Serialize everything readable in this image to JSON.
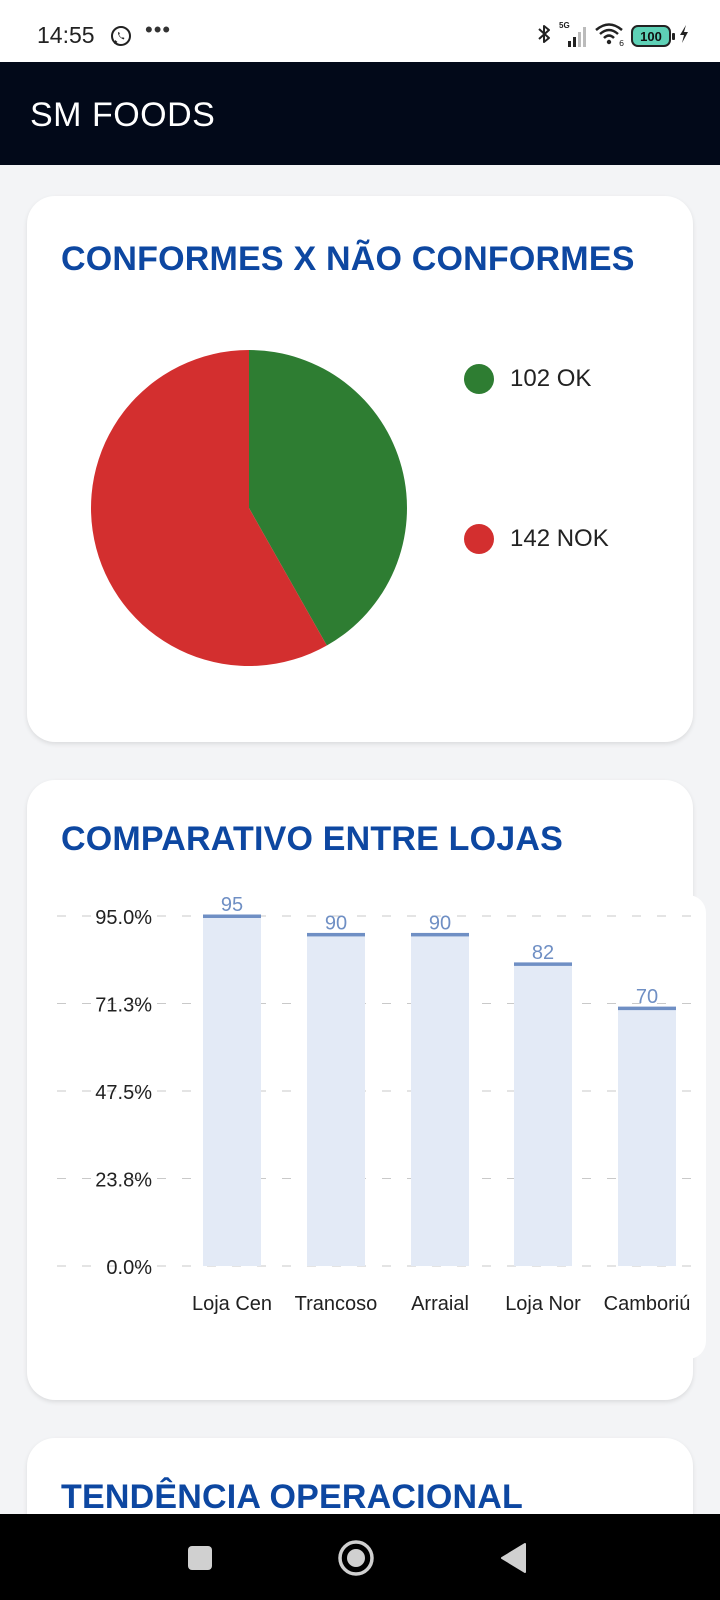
{
  "status_bar": {
    "time": "14:55",
    "overflow": "•••",
    "network": "5G",
    "battery": "100",
    "icons": [
      "whatsapp-icon",
      "bluetooth-icon",
      "signal-icon",
      "wifi-icon",
      "battery-icon",
      "charging-icon"
    ]
  },
  "app_bar": {
    "title": "SM FOODS"
  },
  "cards": {
    "pie": {
      "title": "CONFORMES X NÃO CONFORMES",
      "legend": [
        {
          "label": "102 OK",
          "color": "#2e7d32"
        },
        {
          "label": "142 NOK",
          "color": "#d32f2f"
        }
      ]
    },
    "bar": {
      "title": "COMPARATIVO ENTRE LOJAS"
    },
    "trend": {
      "title": "TENDÊNCIA OPERACIONAL"
    }
  },
  "chart_data": [
    {
      "type": "pie",
      "title": "CONFORMES X NÃO CONFORMES",
      "slices": [
        {
          "label": "OK",
          "value": 102,
          "color": "#2e7d32"
        },
        {
          "label": "NOK",
          "value": 142,
          "color": "#d32f2f"
        }
      ]
    },
    {
      "type": "bar",
      "title": "COMPARATIVO ENTRE LOJAS",
      "categories": [
        "Loja Cen",
        "Trancoso",
        "Arraial",
        "Loja Nor",
        "Camboriú"
      ],
      "values": [
        95,
        90,
        90,
        82,
        70
      ],
      "value_labels": [
        "95",
        "90",
        "90",
        "82",
        "70"
      ],
      "y_ticks": [
        "95.0%",
        "71.3%",
        "47.5%",
        "23.8%",
        "0.0%"
      ],
      "ylim": [
        0,
        95
      ],
      "grid": true,
      "bar_color": "#e3eaf6",
      "bar_top_color": "#6f8fc4",
      "label_color": "#6f8fc4"
    }
  ],
  "nav_bar": {
    "buttons": [
      "recents-button",
      "home-button",
      "back-button"
    ]
  }
}
